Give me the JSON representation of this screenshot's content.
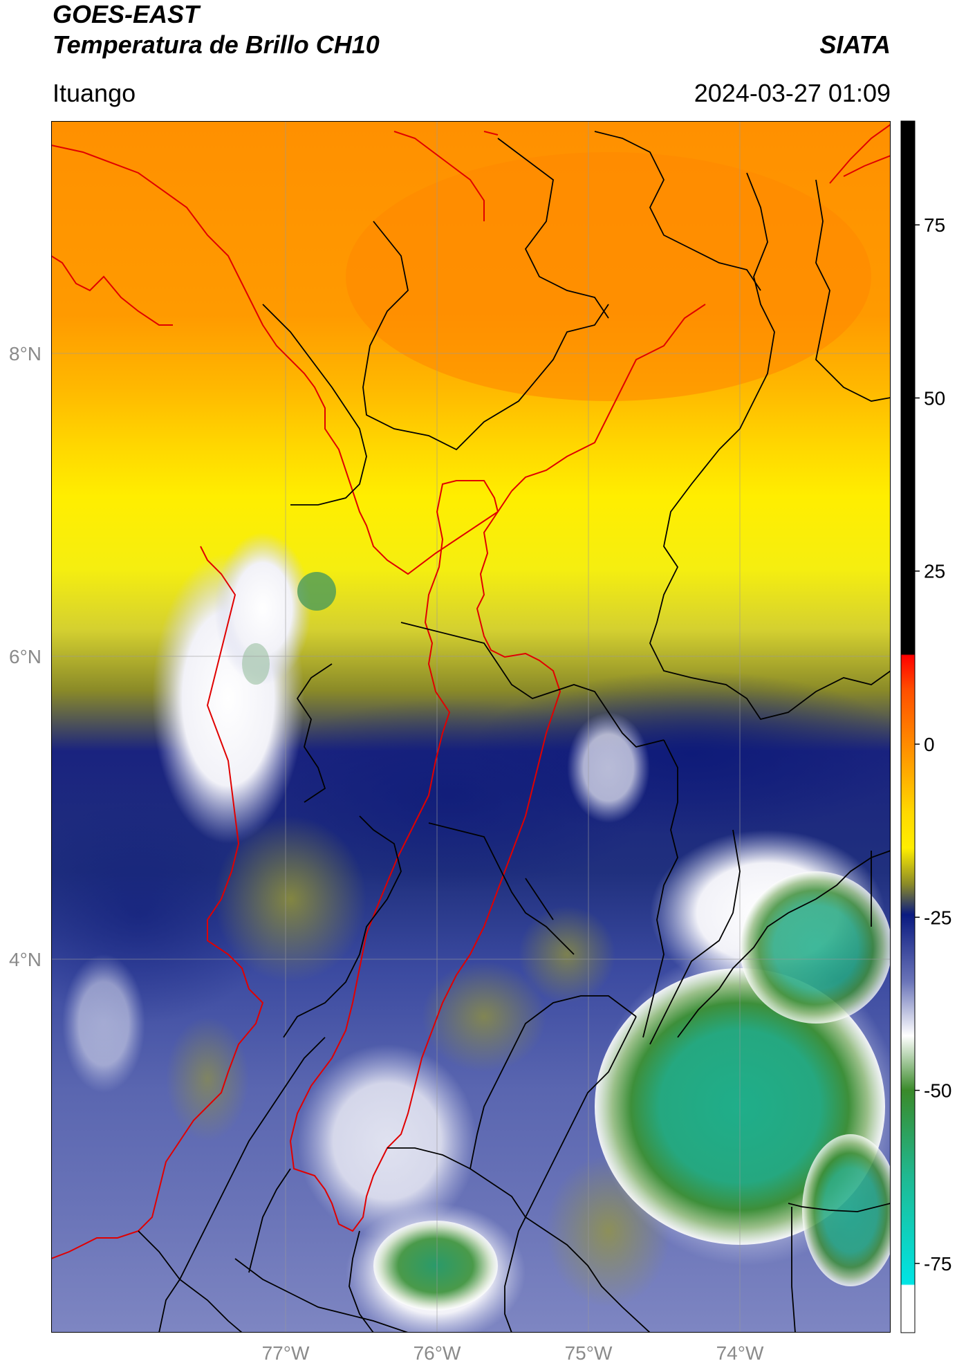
{
  "header": {
    "title": "GOES-EAST",
    "subtitle": "Temperatura de Brillo CH10",
    "organization": "SIATA",
    "region": "Ituango",
    "timestamp": "2024-03-27 01:09"
  },
  "map": {
    "lat_labels": [
      "8°N",
      "6°N",
      "4°N"
    ],
    "lon_labels": [
      "77°W",
      "76°W",
      "75°W",
      "74°W"
    ],
    "lat_values": [
      8,
      6,
      4
    ],
    "lon_values": [
      -77,
      -76,
      -75,
      -74
    ],
    "lon_range": [
      -78.55,
      -73.0
    ],
    "lat_range": [
      2.2,
      9.55
    ]
  },
  "colorbar": {
    "tick_labels": [
      "75",
      "50",
      "25",
      "0",
      "-25",
      "-50",
      "-75"
    ],
    "tick_values": [
      75,
      50,
      25,
      0,
      -25,
      -50,
      -75
    ],
    "range": [
      -85,
      90
    ],
    "colors": {
      "black": "#000000",
      "red": "#ff0000",
      "orange": "#ff8c00",
      "yellow": "#ffee00",
      "olive": "#8a8a28",
      "navy": "#0a1a80",
      "white": "#ffffff",
      "green": "#3a8a2a",
      "teal": "#20b890",
      "cyan": "#00e5e5"
    }
  },
  "chart_data": {
    "type": "heatmap",
    "title": "Temperatura de Brillo CH10",
    "xlabel": "",
    "ylabel": "",
    "x_ticks": [
      "77°W",
      "76°W",
      "75°W",
      "74°W"
    ],
    "y_ticks": [
      "8°N",
      "6°N",
      "4°N"
    ],
    "colorbar_ticks": [
      75,
      50,
      25,
      0,
      -25,
      -50,
      -75
    ],
    "colorbar_range": [
      -85,
      90
    ],
    "grid": true
  }
}
